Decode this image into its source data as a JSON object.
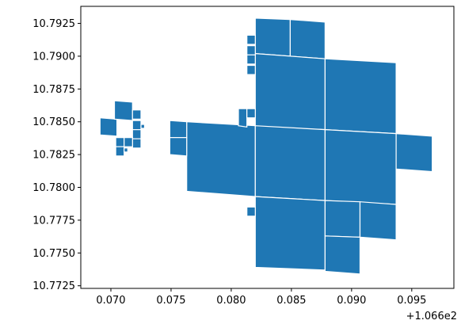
{
  "chart_data": {
    "type": "geometry",
    "title": "",
    "xlabel": "",
    "ylabel": "",
    "x_offset_label": "+1.066e2",
    "xlim": [
      0.0675,
      0.0985
    ],
    "ylim": [
      10.7723,
      10.7938
    ],
    "x_ticks": [
      {
        "value": 0.07,
        "label": "0.070"
      },
      {
        "value": 0.075,
        "label": "0.075"
      },
      {
        "value": 0.08,
        "label": "0.080"
      },
      {
        "value": 0.085,
        "label": "0.085"
      },
      {
        "value": 0.09,
        "label": "0.090"
      },
      {
        "value": 0.095,
        "label": "0.095"
      }
    ],
    "y_ticks": [
      {
        "value": 10.7725,
        "label": "10.7725"
      },
      {
        "value": 10.775,
        "label": "10.7750"
      },
      {
        "value": 10.7775,
        "label": "10.7775"
      },
      {
        "value": 10.78,
        "label": "10.7800"
      },
      {
        "value": 10.7825,
        "label": "10.7825"
      },
      {
        "value": 10.785,
        "label": "10.7850"
      },
      {
        "value": 10.7875,
        "label": "10.7875"
      },
      {
        "value": 10.79,
        "label": "10.7900"
      },
      {
        "value": 10.7925,
        "label": "10.7925"
      }
    ],
    "fill_color": "#1f77b4",
    "edge_color": "#ffffff",
    "polygons": [
      [
        [
          0.082,
          10.7929
        ],
        [
          0.0849,
          10.7928
        ],
        [
          0.0849,
          10.79
        ],
        [
          0.082,
          10.7902
        ]
      ],
      [
        [
          0.0849,
          10.7928
        ],
        [
          0.0878,
          10.7926
        ],
        [
          0.0878,
          10.7898
        ],
        [
          0.0849,
          10.79
        ]
      ],
      [
        [
          0.082,
          10.7902
        ],
        [
          0.0878,
          10.7898
        ],
        [
          0.0878,
          10.7844
        ],
        [
          0.082,
          10.7846
        ]
      ],
      [
        [
          0.0878,
          10.7898
        ],
        [
          0.0937,
          10.7895
        ],
        [
          0.0937,
          10.7841
        ],
        [
          0.0878,
          10.7844
        ]
      ],
      [
        [
          0.0763,
          10.785
        ],
        [
          0.082,
          10.7847
        ],
        [
          0.082,
          10.7793
        ],
        [
          0.0763,
          10.7797
        ]
      ],
      [
        [
          0.082,
          10.7847
        ],
        [
          0.0878,
          10.7844
        ],
        [
          0.0878,
          10.779
        ],
        [
          0.082,
          10.7793
        ]
      ],
      [
        [
          0.0878,
          10.7844
        ],
        [
          0.0937,
          10.7841
        ],
        [
          0.0937,
          10.7787
        ],
        [
          0.0878,
          10.779
        ]
      ],
      [
        [
          0.0937,
          10.7841
        ],
        [
          0.0967,
          10.7839
        ],
        [
          0.0967,
          10.7812
        ],
        [
          0.0937,
          10.7814
        ]
      ],
      [
        [
          0.0749,
          10.7851
        ],
        [
          0.0763,
          10.785
        ],
        [
          0.0763,
          10.7838
        ],
        [
          0.0749,
          10.7838
        ]
      ],
      [
        [
          0.0749,
          10.7838
        ],
        [
          0.0763,
          10.7838
        ],
        [
          0.0763,
          10.7824
        ],
        [
          0.0749,
          10.7825
        ]
      ],
      [
        [
          0.082,
          10.7793
        ],
        [
          0.0878,
          10.779
        ],
        [
          0.0878,
          10.7737
        ],
        [
          0.082,
          10.7739
        ]
      ],
      [
        [
          0.0878,
          10.779
        ],
        [
          0.0907,
          10.7789
        ],
        [
          0.0907,
          10.7762
        ],
        [
          0.0878,
          10.7763
        ]
      ],
      [
        [
          0.0907,
          10.7789
        ],
        [
          0.0937,
          10.7787
        ],
        [
          0.0937,
          10.776
        ],
        [
          0.0907,
          10.7762
        ]
      ],
      [
        [
          0.0878,
          10.7763
        ],
        [
          0.0907,
          10.7762
        ],
        [
          0.0907,
          10.7734
        ],
        [
          0.0878,
          10.7736
        ]
      ],
      [
        [
          0.0813,
          10.7916
        ],
        [
          0.082,
          10.7916
        ],
        [
          0.082,
          10.7909
        ],
        [
          0.0813,
          10.7909
        ]
      ],
      [
        [
          0.0813,
          10.7908
        ],
        [
          0.082,
          10.7908
        ],
        [
          0.082,
          10.7901
        ],
        [
          0.0813,
          10.7901
        ]
      ],
      [
        [
          0.0813,
          10.7901
        ],
        [
          0.082,
          10.7901
        ],
        [
          0.082,
          10.7894
        ],
        [
          0.0813,
          10.7894
        ]
      ],
      [
        [
          0.0813,
          10.7893
        ],
        [
          0.082,
          10.7893
        ],
        [
          0.082,
          10.7886
        ],
        [
          0.0813,
          10.7886
        ]
      ],
      [
        [
          0.0806,
          10.786
        ],
        [
          0.0813,
          10.786
        ],
        [
          0.0813,
          10.7846
        ],
        [
          0.0806,
          10.7847
        ]
      ],
      [
        [
          0.0813,
          10.786
        ],
        [
          0.082,
          10.786
        ],
        [
          0.082,
          10.7853
        ],
        [
          0.0813,
          10.7853
        ]
      ],
      [
        [
          0.0813,
          10.7785
        ],
        [
          0.082,
          10.7785
        ],
        [
          0.082,
          10.7778
        ],
        [
          0.0813,
          10.7778
        ]
      ],
      [
        [
          0.0691,
          10.7853
        ],
        [
          0.0705,
          10.7852
        ],
        [
          0.0705,
          10.7839
        ],
        [
          0.0691,
          10.784
        ]
      ],
      [
        [
          0.0703,
          10.7866
        ],
        [
          0.0718,
          10.7865
        ],
        [
          0.0718,
          10.7851
        ],
        [
          0.0703,
          10.7852
        ]
      ],
      [
        [
          0.0718,
          10.7859
        ],
        [
          0.0725,
          10.7859
        ],
        [
          0.0725,
          10.7852
        ],
        [
          0.0718,
          10.7852
        ]
      ],
      [
        [
          0.0718,
          10.7851
        ],
        [
          0.0725,
          10.7851
        ],
        [
          0.0725,
          10.7844
        ],
        [
          0.0718,
          10.7844
        ]
      ],
      [
        [
          0.0718,
          10.7844
        ],
        [
          0.0725,
          10.7844
        ],
        [
          0.0725,
          10.7837
        ],
        [
          0.0718,
          10.7837
        ]
      ],
      [
        [
          0.0718,
          10.7837
        ],
        [
          0.0725,
          10.7837
        ],
        [
          0.0725,
          10.783
        ],
        [
          0.0718,
          10.783
        ]
      ],
      [
        [
          0.0725,
          10.7848
        ],
        [
          0.0728,
          10.7848
        ],
        [
          0.0728,
          10.7845
        ],
        [
          0.0725,
          10.7845
        ]
      ],
      [
        [
          0.0704,
          10.7838
        ],
        [
          0.0711,
          10.7838
        ],
        [
          0.0711,
          10.7831
        ],
        [
          0.0704,
          10.7831
        ]
      ],
      [
        [
          0.0711,
          10.7838
        ],
        [
          0.0718,
          10.7838
        ],
        [
          0.0718,
          10.7831
        ],
        [
          0.0711,
          10.7831
        ]
      ],
      [
        [
          0.0704,
          10.7831
        ],
        [
          0.0711,
          10.7831
        ],
        [
          0.0711,
          10.7824
        ],
        [
          0.0704,
          10.7824
        ]
      ],
      [
        [
          0.0711,
          10.783
        ],
        [
          0.0714,
          10.783
        ],
        [
          0.0714,
          10.7827
        ],
        [
          0.0711,
          10.7827
        ]
      ]
    ]
  }
}
